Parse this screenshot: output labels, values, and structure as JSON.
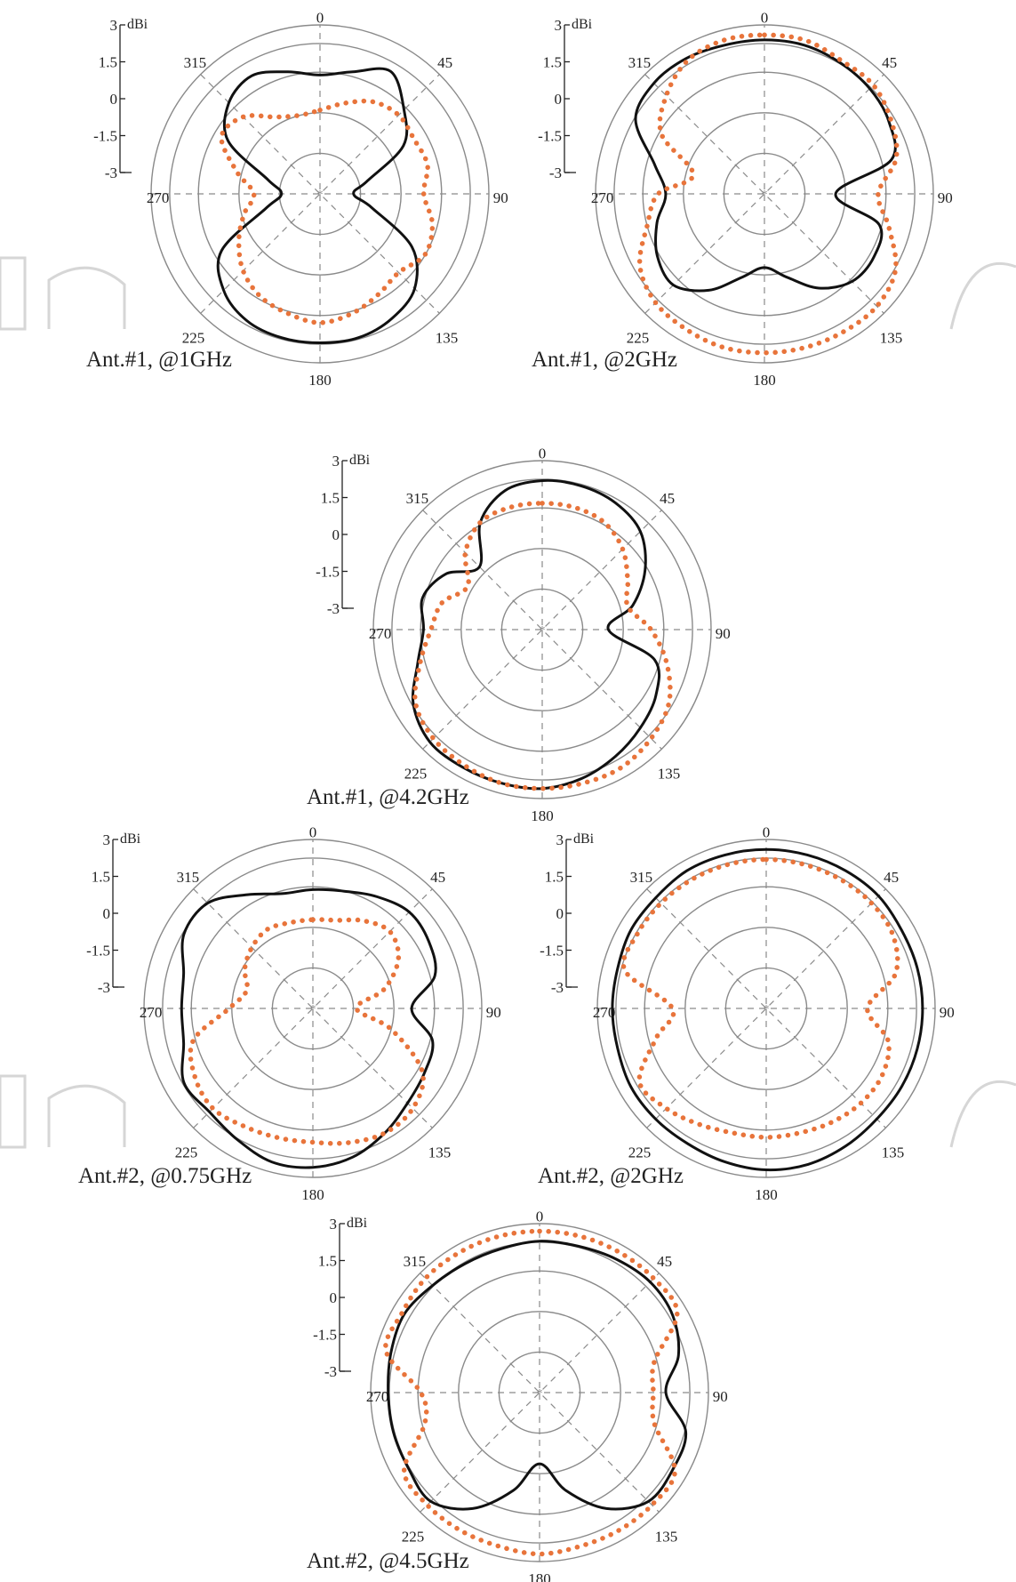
{
  "watermark": {
    "visible": true,
    "color": "#d6d6d6"
  },
  "colors": {
    "solid": "#111111",
    "dotted": "#e8743b",
    "grid": "#8a8a8a",
    "text": "#222222"
  },
  "chart_data": [
    {
      "type": "polar",
      "title": "Ant.#1, @1GHz",
      "unit": "dBi",
      "radial_ticks": [
        "3",
        "1.5",
        "0",
        "-1.5",
        "-3"
      ],
      "rlim": [
        -3,
        3
      ],
      "angle_ticks": [
        "0",
        "45",
        "90",
        "135",
        "180",
        "225",
        "270",
        "315"
      ],
      "series": [
        {
          "style": "solid",
          "theta": [
            0,
            15,
            30,
            45,
            60,
            75,
            90,
            105,
            120,
            135,
            150,
            165,
            180,
            195,
            210,
            225,
            240,
            255,
            270,
            285,
            300,
            315,
            330,
            345
          ],
          "r": [
            1.0,
            1.3,
            1.9,
            1.0,
            0.1,
            -1.8,
            -2.4,
            -1.6,
            0.5,
            1.6,
            2.0,
            2.2,
            2.2,
            2.2,
            2.1,
            1.7,
            0.8,
            -1.5,
            -2.2,
            -1.6,
            0.5,
            1.4,
            1.7,
            1.3
          ]
        },
        {
          "style": "dotted",
          "theta": [
            0,
            15,
            30,
            45,
            60,
            75,
            90,
            105,
            120,
            135,
            150,
            165,
            180,
            195,
            210,
            225,
            240,
            255,
            270,
            285,
            300,
            315,
            330,
            345
          ],
          "r": [
            -0.4,
            0.0,
            0.5,
            0.7,
            0.6,
            0.7,
            0.4,
            0.9,
            1.1,
            0.7,
            0.9,
            1.2,
            1.4,
            1.2,
            1.0,
            0.6,
            0.0,
            -0.6,
            -1.1,
            -0.3,
            0.8,
            0.6,
            -0.2,
            -0.5
          ]
        }
      ]
    },
    {
      "type": "polar",
      "title": "Ant.#1, @2GHz",
      "unit": "dBi",
      "radial_ticks": [
        "3",
        "1.5",
        "0",
        "-1.5",
        "-3"
      ],
      "rlim": [
        -3,
        3
      ],
      "angle_ticks": [
        "0",
        "45",
        "90",
        "135",
        "180",
        "225",
        "270",
        "315"
      ],
      "series": [
        {
          "style": "solid",
          "theta": [
            0,
            15,
            30,
            45,
            60,
            75,
            90,
            105,
            120,
            135,
            150,
            165,
            180,
            195,
            210,
            225,
            240,
            255,
            270,
            285,
            300,
            315,
            330,
            345
          ],
          "r": [
            2.4,
            2.4,
            2.3,
            2.2,
            2.0,
            1.5,
            -0.9,
            1.0,
            1.3,
            1.2,
            0.6,
            -0.3,
            -0.8,
            -0.3,
            0.7,
            1.4,
            1.2,
            0.7,
            0.2,
            0.8,
            2.2,
            2.5,
            2.5,
            2.4
          ]
        },
        {
          "style": "dotted",
          "theta": [
            0,
            15,
            30,
            45,
            60,
            75,
            90,
            105,
            120,
            135,
            150,
            165,
            180,
            195,
            210,
            225,
            240,
            255,
            270,
            285,
            300,
            315,
            330,
            345
          ],
          "r": [
            2.6,
            2.6,
            2.4,
            2.4,
            2.1,
            1.7,
            0.8,
            1.4,
            2.3,
            2.6,
            2.6,
            2.6,
            2.6,
            2.6,
            2.5,
            2.4,
            2.0,
            1.1,
            0.5,
            -0.8,
            1.0,
            1.8,
            2.4,
            2.6
          ]
        }
      ]
    },
    {
      "type": "polar",
      "title": "Ant.#1, @4.2GHz",
      "unit": "dBi",
      "radial_ticks": [
        "3",
        "1.5",
        "0",
        "-1.5",
        "-3"
      ],
      "rlim": [
        -3,
        3
      ],
      "angle_ticks": [
        "0",
        "45",
        "90",
        "135",
        "180",
        "225",
        "270",
        "315"
      ],
      "series": [
        {
          "style": "solid",
          "theta": [
            0,
            15,
            30,
            45,
            60,
            75,
            90,
            105,
            120,
            135,
            150,
            165,
            180,
            195,
            210,
            225,
            240,
            255,
            270,
            285,
            300,
            315,
            330,
            345
          ],
          "r": [
            2.2,
            2.2,
            2.1,
            1.8,
            1.0,
            0.0,
            -1.1,
            0.9,
            1.5,
            1.8,
            2.1,
            2.4,
            2.6,
            2.6,
            2.6,
            2.6,
            2.2,
            1.4,
            1.0,
            1.2,
            0.7,
            -0.2,
            1.2,
            2.0
          ]
        },
        {
          "style": "dotted",
          "theta": [
            0,
            15,
            30,
            45,
            60,
            75,
            90,
            105,
            120,
            135,
            150,
            165,
            180,
            195,
            210,
            225,
            240,
            255,
            270,
            285,
            300,
            315,
            330,
            345
          ],
          "r": [
            1.3,
            1.3,
            1.2,
            0.8,
            0.2,
            -0.2,
            0.6,
            1.4,
            2.1,
            2.4,
            2.6,
            2.6,
            2.6,
            2.6,
            2.5,
            2.4,
            2.1,
            1.3,
            0.7,
            0.4,
            -0.3,
            0.6,
            1.2,
            1.3
          ]
        }
      ]
    },
    {
      "type": "polar",
      "title": "Ant.#2, @0.75GHz",
      "unit": "dBi",
      "radial_ticks": [
        "3",
        "1.5",
        "0",
        "-1.5",
        "-3"
      ],
      "rlim": [
        -3,
        3
      ],
      "angle_ticks": [
        "0",
        "45",
        "90",
        "135",
        "180",
        "225",
        "270",
        "315"
      ],
      "series": [
        {
          "style": "solid",
          "theta": [
            0,
            15,
            30,
            45,
            60,
            75,
            90,
            105,
            120,
            135,
            150,
            165,
            180,
            195,
            210,
            225,
            240,
            255,
            270,
            285,
            300,
            315,
            330,
            345
          ],
          "r": [
            1.0,
            1.1,
            1.4,
            1.7,
            1.6,
            1.3,
            0.2,
            1.2,
            1.4,
            1.6,
            2.0,
            2.4,
            2.6,
            2.6,
            2.3,
            2.1,
            2.2,
            1.6,
            1.5,
            1.6,
            2.2,
            2.2,
            1.5,
            1.0
          ]
        },
        {
          "style": "dotted",
          "theta": [
            0,
            15,
            30,
            45,
            60,
            75,
            90,
            105,
            120,
            135,
            150,
            165,
            180,
            195,
            210,
            225,
            240,
            255,
            270,
            285,
            300,
            315,
            330,
            345
          ],
          "r": [
            -0.2,
            -0.1,
            0.3,
            0.6,
            0.2,
            -0.8,
            -2.0,
            -0.5,
            1.3,
            1.9,
            2.0,
            1.8,
            1.6,
            1.6,
            1.7,
            1.9,
            1.7,
            1.2,
            -0.4,
            -1.0,
            -0.6,
            -0.3,
            -0.1,
            -0.2
          ]
        }
      ]
    },
    {
      "type": "polar",
      "title": "Ant.#2, @2GHz",
      "unit": "dBi",
      "radial_ticks": [
        "3",
        "1.5",
        "0",
        "-1.5",
        "-3"
      ],
      "rlim": [
        -3,
        3
      ],
      "angle_ticks": [
        "0",
        "45",
        "90",
        "135",
        "180",
        "225",
        "270",
        "315"
      ],
      "series": [
        {
          "style": "solid",
          "theta": [
            0,
            15,
            30,
            45,
            60,
            75,
            90,
            105,
            120,
            135,
            150,
            165,
            180,
            195,
            210,
            225,
            240,
            255,
            270,
            285,
            300,
            315,
            330,
            345
          ],
          "r": [
            2.6,
            2.6,
            2.6,
            2.6,
            2.5,
            2.5,
            2.5,
            2.5,
            2.5,
            2.5,
            2.6,
            2.7,
            2.7,
            2.6,
            2.5,
            2.5,
            2.5,
            2.4,
            2.4,
            2.4,
            2.5,
            2.5,
            2.6,
            2.6
          ]
        },
        {
          "style": "dotted",
          "theta": [
            0,
            15,
            30,
            45,
            60,
            75,
            90,
            105,
            120,
            135,
            150,
            165,
            180,
            195,
            210,
            225,
            240,
            255,
            270,
            285,
            300,
            315,
            330,
            345
          ],
          "r": [
            2.2,
            2.2,
            2.2,
            2.2,
            2.1,
            1.6,
            0.3,
            1.3,
            1.6,
            1.6,
            1.5,
            1.4,
            1.4,
            1.4,
            1.6,
            1.9,
            2.1,
            0.8,
            0.0,
            2.1,
            2.2,
            2.2,
            2.2,
            2.2
          ]
        }
      ]
    },
    {
      "type": "polar",
      "title": "Ant.#2, @4.5GHz",
      "unit": "dBi",
      "radial_ticks": [
        "3",
        "1.5",
        "0",
        "-1.5",
        "-3"
      ],
      "rlim": [
        -3,
        3
      ],
      "angle_ticks": [
        "0",
        "45",
        "90",
        "135",
        "180",
        "225",
        "270",
        "315"
      ],
      "series": [
        {
          "style": "solid",
          "theta": [
            0,
            15,
            30,
            45,
            60,
            75,
            90,
            105,
            120,
            135,
            150,
            165,
            180,
            195,
            210,
            225,
            240,
            255,
            270,
            285,
            300,
            315,
            330,
            345
          ],
          "r": [
            2.3,
            2.3,
            2.4,
            2.5,
            2.4,
            2.0,
            1.3,
            2.3,
            2.4,
            2.4,
            1.6,
            0.3,
            -0.9,
            0.3,
            1.6,
            2.4,
            2.3,
            2.3,
            2.3,
            2.4,
            2.5,
            2.3,
            2.2,
            2.2
          ]
        },
        {
          "style": "dotted",
          "theta": [
            0,
            15,
            30,
            45,
            60,
            75,
            90,
            105,
            120,
            135,
            150,
            165,
            180,
            195,
            210,
            225,
            240,
            255,
            270,
            285,
            300,
            315,
            330,
            345
          ],
          "r": [
            2.7,
            2.7,
            2.7,
            2.7,
            2.6,
            1.0,
            0.8,
            1.0,
            2.5,
            2.6,
            2.6,
            2.6,
            2.7,
            2.6,
            2.6,
            2.6,
            2.5,
            1.0,
            1.0,
            2.6,
            2.6,
            2.7,
            2.7,
            2.7
          ]
        }
      ]
    }
  ]
}
